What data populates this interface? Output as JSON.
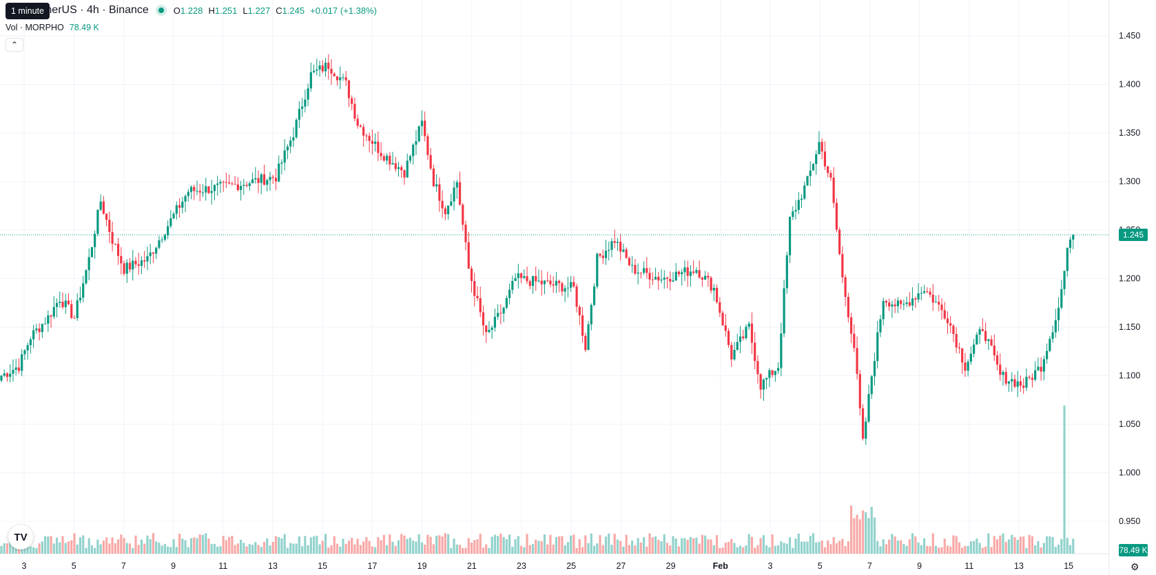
{
  "legend": {
    "symbol": "HO / TetherUS · 4h · Binance",
    "open_key": "O",
    "open": "1.228",
    "high_key": "H",
    "high": "1.251",
    "low_key": "L",
    "low": "1.227",
    "close_key": "C",
    "close": "1.245",
    "change": "+0.017 (+1.38%)",
    "vol_label": "Vol · MORPHO",
    "vol_value": "78.49 K",
    "collapse_icon": "chevron-up-icon"
  },
  "tooltip": {
    "text": "1 minute"
  },
  "price_tags": {
    "last_price": "1.245",
    "last_volume": "78.49 K"
  },
  "colors": {
    "up": "#089981",
    "down": "#f23645",
    "up_vol": "#92d2cc",
    "down_vol": "#f7a9a7",
    "grid": "#f0f3fa"
  },
  "chart_data": {
    "type": "candlestick",
    "y_axis_ticks": [
      "1.450",
      "1.400",
      "1.350",
      "1.300",
      "1.250",
      "1.200",
      "1.150",
      "1.100",
      "1.050",
      "1.000",
      "0.950"
    ],
    "y_axis_values": [
      1.45,
      1.4,
      1.35,
      1.3,
      1.25,
      1.2,
      1.15,
      1.1,
      1.05,
      1.0,
      0.95
    ],
    "x_axis_ticks": [
      "3",
      "5",
      "7",
      "9",
      "11",
      "13",
      "15",
      "17",
      "19",
      "21",
      "23",
      "25",
      "27",
      "29",
      "Feb",
      "3",
      "5",
      "7",
      "9",
      "11",
      "13",
      "15"
    ],
    "last_price": 1.245,
    "close_path": [
      [
        0,
        1.1
      ],
      [
        6,
        1.11
      ],
      [
        10,
        1.14
      ],
      [
        16,
        1.16
      ],
      [
        20,
        1.18
      ],
      [
        25,
        1.16
      ],
      [
        30,
        1.22
      ],
      [
        34,
        1.28
      ],
      [
        38,
        1.24
      ],
      [
        42,
        1.21
      ],
      [
        50,
        1.22
      ],
      [
        58,
        1.26
      ],
      [
        64,
        1.29
      ],
      [
        78,
        1.295
      ],
      [
        94,
        1.305
      ],
      [
        100,
        1.35
      ],
      [
        106,
        1.41
      ],
      [
        112,
        1.42
      ],
      [
        118,
        1.4
      ],
      [
        122,
        1.36
      ],
      [
        130,
        1.33
      ],
      [
        138,
        1.31
      ],
      [
        144,
        1.36
      ],
      [
        148,
        1.3
      ],
      [
        152,
        1.27
      ],
      [
        156,
        1.3
      ],
      [
        160,
        1.21
      ],
      [
        166,
        1.14
      ],
      [
        172,
        1.17
      ],
      [
        176,
        1.2
      ],
      [
        186,
        1.195
      ],
      [
        196,
        1.19
      ],
      [
        200,
        1.13
      ],
      [
        204,
        1.22
      ],
      [
        210,
        1.24
      ],
      [
        216,
        1.21
      ],
      [
        226,
        1.2
      ],
      [
        238,
        1.21
      ],
      [
        244,
        1.19
      ],
      [
        250,
        1.12
      ],
      [
        256,
        1.15
      ],
      [
        260,
        1.09
      ],
      [
        266,
        1.11
      ],
      [
        270,
        1.26
      ],
      [
        276,
        1.3
      ],
      [
        280,
        1.34
      ],
      [
        284,
        1.3
      ],
      [
        288,
        1.2
      ],
      [
        292,
        1.13
      ],
      [
        295,
        1.03
      ],
      [
        298,
        1.1
      ],
      [
        302,
        1.18
      ],
      [
        308,
        1.17
      ],
      [
        316,
        1.19
      ],
      [
        324,
        1.16
      ],
      [
        330,
        1.11
      ],
      [
        336,
        1.15
      ],
      [
        342,
        1.1
      ],
      [
        350,
        1.09
      ],
      [
        356,
        1.11
      ],
      [
        362,
        1.17
      ],
      [
        366,
        1.245
      ]
    ]
  }
}
